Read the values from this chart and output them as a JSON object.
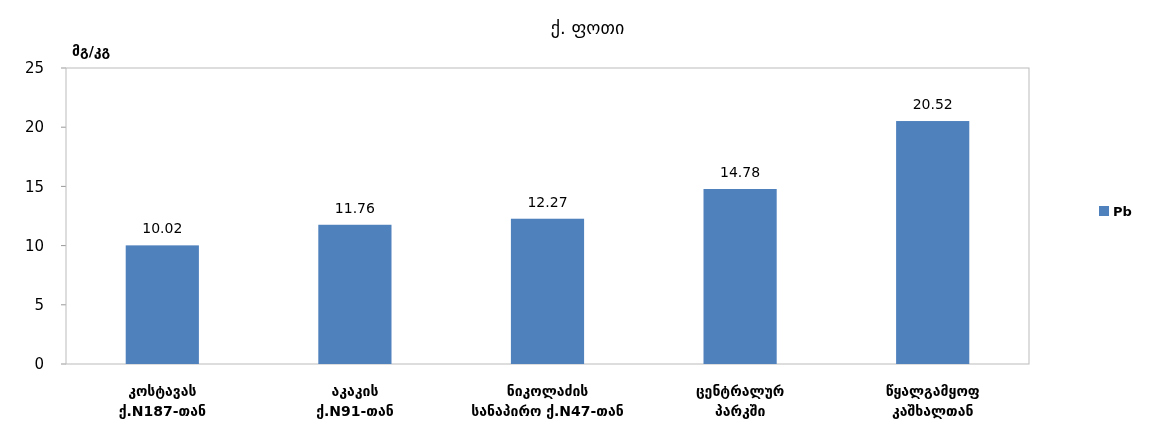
{
  "chart_data": {
    "type": "bar",
    "title": "ქ. ფოთი",
    "ylabel": "მგ/კგ",
    "categories": [
      "კოსტავას ქ.N187-თან",
      "აკაკის ქ.N91-თან",
      "ნიკოლაძის სანაპირო ქ.N47-თან",
      "ცენტრალურ პარკში",
      "წყალგამყოფ კაშხალთან"
    ],
    "series": [
      {
        "name": "Pb",
        "color": "#4f81bd",
        "values": [
          10.02,
          11.76,
          12.27,
          14.78,
          20.52
        ]
      }
    ],
    "ylim": [
      0,
      25
    ],
    "yticks": [
      0,
      5,
      10,
      15,
      20,
      25
    ],
    "data_labels": true,
    "legend": "right"
  }
}
